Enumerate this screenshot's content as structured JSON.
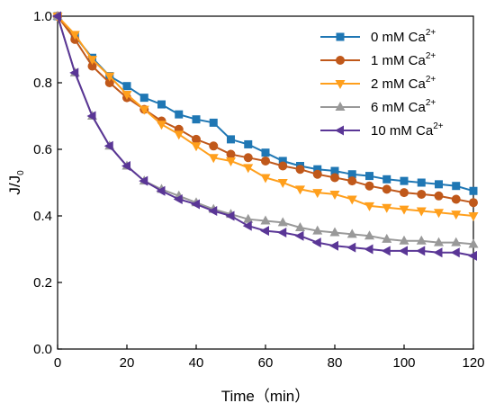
{
  "chart_data": {
    "type": "line",
    "title": "",
    "xlabel": "Time（min）",
    "ylabel_main": "J/J",
    "ylabel_sub": "0",
    "xlim": [
      0,
      120
    ],
    "ylim": [
      0.0,
      1.0
    ],
    "x_ticks": [
      "0",
      "20",
      "40",
      "60",
      "80",
      "100",
      "120"
    ],
    "y_ticks": [
      "0.0",
      "0.2",
      "0.4",
      "0.6",
      "0.8",
      "1.0"
    ],
    "grid": false,
    "legend_position": "top-right",
    "x": [
      0,
      5,
      10,
      15,
      20,
      25,
      30,
      35,
      40,
      45,
      50,
      55,
      60,
      65,
      70,
      75,
      80,
      85,
      90,
      95,
      100,
      105,
      110,
      115,
      120
    ],
    "series": [
      {
        "name": "0 mM Ca",
        "sup": "2+",
        "color": "#1f77b4",
        "marker": "square",
        "values": [
          1.0,
          0.94,
          0.875,
          0.82,
          0.79,
          0.755,
          0.735,
          0.705,
          0.69,
          0.68,
          0.63,
          0.615,
          0.59,
          0.565,
          0.55,
          0.54,
          0.535,
          0.525,
          0.52,
          0.51,
          0.505,
          0.5,
          0.495,
          0.49,
          0.475
        ]
      },
      {
        "name": "1 mM Ca",
        "sup": "2+",
        "color": "#c0581a",
        "marker": "circle",
        "values": [
          1.0,
          0.93,
          0.85,
          0.8,
          0.755,
          0.72,
          0.685,
          0.66,
          0.63,
          0.61,
          0.585,
          0.575,
          0.565,
          0.55,
          0.54,
          0.525,
          0.515,
          0.505,
          0.49,
          0.48,
          0.47,
          0.465,
          0.46,
          0.45,
          0.44
        ]
      },
      {
        "name": "2 mM Ca",
        "sup": "2+",
        "color": "#ff9f1c",
        "marker": "triangle-down",
        "values": [
          1.0,
          0.945,
          0.87,
          0.82,
          0.765,
          0.72,
          0.675,
          0.645,
          0.61,
          0.575,
          0.565,
          0.545,
          0.515,
          0.5,
          0.48,
          0.47,
          0.465,
          0.45,
          0.43,
          0.425,
          0.42,
          0.415,
          0.41,
          0.405,
          0.4
        ]
      },
      {
        "name": "6 mM Ca",
        "sup": "2+",
        "color": "#999999",
        "marker": "triangle-up",
        "values": [
          1.0,
          0.83,
          0.7,
          0.61,
          0.55,
          0.505,
          0.48,
          0.46,
          0.44,
          0.42,
          0.405,
          0.39,
          0.385,
          0.38,
          0.365,
          0.355,
          0.35,
          0.345,
          0.34,
          0.33,
          0.325,
          0.325,
          0.32,
          0.32,
          0.315
        ]
      },
      {
        "name": "10 mM Ca",
        "sup": "2+",
        "color": "#5a3696",
        "marker": "triangle-left",
        "values": [
          1.0,
          0.83,
          0.7,
          0.61,
          0.55,
          0.505,
          0.475,
          0.45,
          0.435,
          0.415,
          0.4,
          0.37,
          0.355,
          0.35,
          0.34,
          0.32,
          0.31,
          0.305,
          0.3,
          0.295,
          0.295,
          0.295,
          0.29,
          0.29,
          0.28
        ]
      }
    ]
  }
}
